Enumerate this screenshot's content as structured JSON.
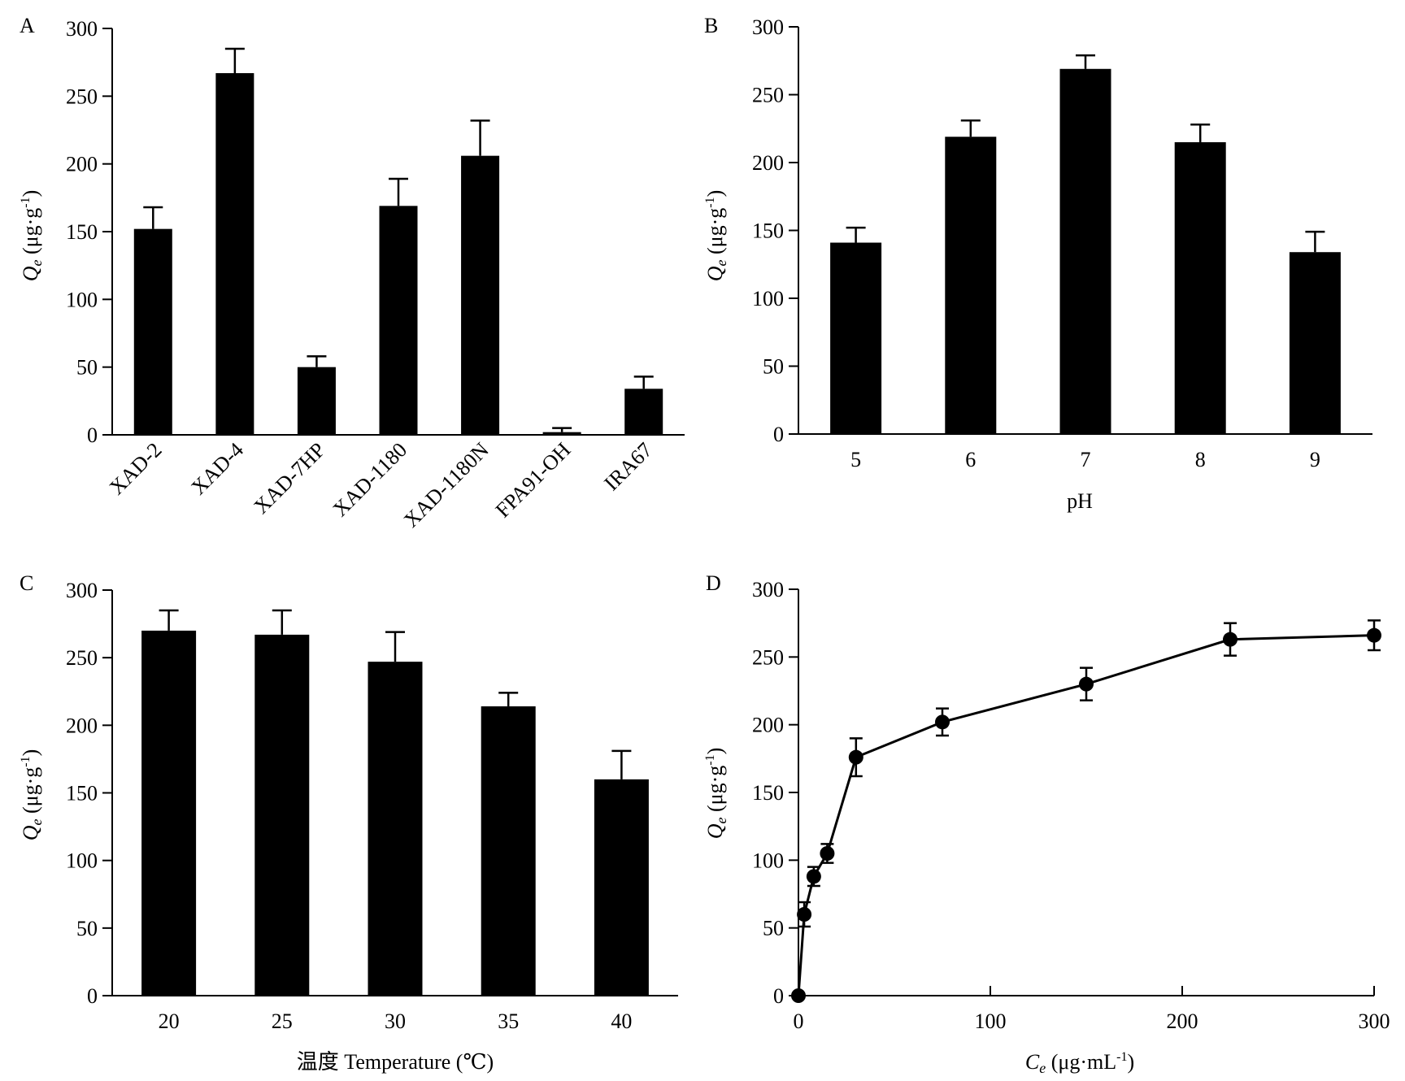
{
  "chart_data": [
    {
      "panel": "A",
      "type": "bar",
      "categories": [
        "XAD-2",
        "XAD-4",
        "XAD-7HP",
        "XAD-1180",
        "XAD-1180N",
        "FPA91-OH",
        "IRA67"
      ],
      "values": [
        152,
        267,
        50,
        169,
        206,
        2,
        34
      ],
      "errors": [
        16,
        18,
        8,
        20,
        26,
        3,
        9
      ],
      "ylabel_main": "Q",
      "ylabel_sub": "e",
      "ylabel_rest": " (μg·g",
      "ylabel_sup": "-1",
      "ylabel_end": ")",
      "xlabel_main": "",
      "ylim": [
        0,
        300
      ],
      "yticks": [
        0,
        50,
        100,
        150,
        200,
        250,
        300
      ]
    },
    {
      "panel": "B",
      "type": "bar",
      "categories": [
        "5",
        "6",
        "7",
        "8",
        "9"
      ],
      "values": [
        141,
        219,
        269,
        215,
        134
      ],
      "errors": [
        11,
        12,
        10,
        13,
        15
      ],
      "ylabel_main": "Q",
      "ylabel_sub": "e",
      "ylabel_rest": " (μg·g",
      "ylabel_sup": "-1",
      "ylabel_end": ")",
      "xlabel_main": "pH",
      "ylim": [
        0,
        300
      ],
      "yticks": [
        0,
        50,
        100,
        150,
        200,
        250,
        300
      ]
    },
    {
      "panel": "C",
      "type": "bar",
      "categories": [
        "20",
        "25",
        "30",
        "35",
        "40"
      ],
      "values": [
        270,
        267,
        247,
        214,
        160
      ],
      "errors": [
        15,
        18,
        22,
        10,
        21
      ],
      "ylabel_main": "Q",
      "ylabel_sub": "e",
      "ylabel_rest": " (μg·g",
      "ylabel_sup": "-1",
      "ylabel_end": ")",
      "xlabel_main": "温度 Temperature (℃)",
      "ylim": [
        0,
        300
      ],
      "yticks": [
        0,
        50,
        100,
        150,
        200,
        250,
        300
      ]
    },
    {
      "panel": "D",
      "type": "line",
      "x": [
        0,
        3,
        8,
        15,
        30,
        75,
        150,
        225,
        300
      ],
      "y": [
        0,
        60,
        88,
        105,
        176,
        202,
        230,
        263,
        266
      ],
      "errors": [
        0,
        9,
        7,
        7,
        14,
        10,
        12,
        12,
        11
      ],
      "ylabel_main": "Q",
      "ylabel_sub": "e",
      "ylabel_rest": " (μg·g",
      "ylabel_sup": "-1",
      "ylabel_end": ")",
      "xlabel_main": "C",
      "xlabel_sub": "e",
      "xlabel_rest": " (μg·mL",
      "xlabel_sup": "-1",
      "xlabel_end": ")",
      "xlim": [
        0,
        300
      ],
      "xticks": [
        0,
        100,
        200,
        300
      ],
      "ylim": [
        0,
        300
      ],
      "yticks": [
        0,
        50,
        100,
        150,
        200,
        250,
        300
      ]
    }
  ]
}
